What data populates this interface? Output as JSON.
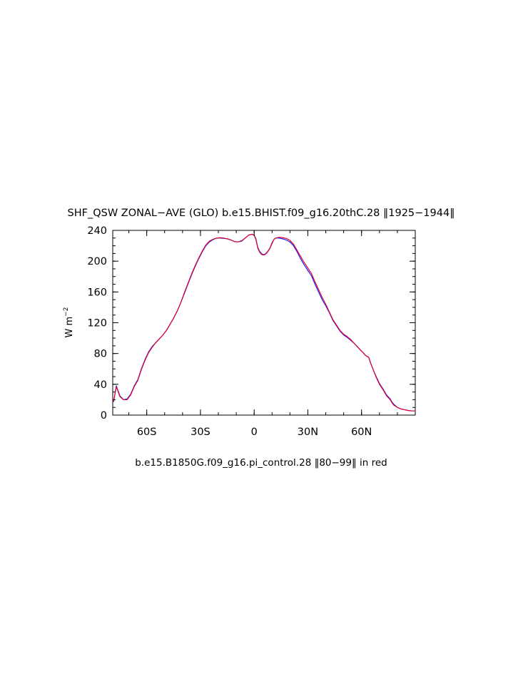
{
  "chart_data": {
    "type": "line",
    "title": "SHF_QSW ZONAL−AVE (GLO) b.e15.BHIST.f09_g16.20thC.28 ‖1925−1944‖",
    "subtitle": "b.e15.B1850G.f09_g16.pi_control.28 ‖80−99‖ in red",
    "ylabel_base": "W m",
    "ylabel_exp": "−2",
    "xlim": [
      -79,
      90
    ],
    "ylim": [
      0,
      240
    ],
    "x_ticks": [
      {
        "value": -60,
        "label": "60S"
      },
      {
        "value": -30,
        "label": "30S"
      },
      {
        "value": 0,
        "label": "0"
      },
      {
        "value": 30,
        "label": "30N"
      },
      {
        "value": 60,
        "label": "60N"
      }
    ],
    "y_ticks": [
      {
        "value": 0,
        "label": "0"
      },
      {
        "value": 40,
        "label": "40"
      },
      {
        "value": 80,
        "label": "80"
      },
      {
        "value": 120,
        "label": "120"
      },
      {
        "value": 160,
        "label": "160"
      },
      {
        "value": 200,
        "label": "200"
      },
      {
        "value": 240,
        "label": "240"
      }
    ],
    "series": [
      {
        "color": "#1f1fff",
        "points": [
          [
            -78.5,
            17
          ],
          [
            -77,
            38
          ],
          [
            -75,
            25
          ],
          [
            -73,
            20
          ],
          [
            -71,
            21
          ],
          [
            -69,
            27
          ],
          [
            -67,
            38
          ],
          [
            -65,
            46
          ],
          [
            -63,
            60
          ],
          [
            -61,
            72
          ],
          [
            -59,
            82
          ],
          [
            -57,
            89
          ],
          [
            -55,
            94
          ],
          [
            -53,
            99
          ],
          [
            -51,
            104
          ],
          [
            -49,
            110
          ],
          [
            -47,
            118
          ],
          [
            -45,
            126
          ],
          [
            -43,
            135
          ],
          [
            -41,
            146
          ],
          [
            -39,
            158
          ],
          [
            -37,
            170
          ],
          [
            -35,
            182
          ],
          [
            -33,
            193
          ],
          [
            -31,
            203
          ],
          [
            -29,
            212
          ],
          [
            -27,
            220
          ],
          [
            -25,
            225
          ],
          [
            -23,
            228
          ],
          [
            -21,
            230
          ],
          [
            -19,
            230
          ],
          [
            -17,
            229.5
          ],
          [
            -15,
            229
          ],
          [
            -13,
            227.5
          ],
          [
            -11,
            225.5
          ],
          [
            -9,
            225
          ],
          [
            -7,
            226
          ],
          [
            -5,
            230
          ],
          [
            -3,
            234
          ],
          [
            -1,
            235
          ],
          [
            0,
            234
          ],
          [
            1,
            229
          ],
          [
            2,
            218
          ],
          [
            3,
            213
          ],
          [
            4,
            210
          ],
          [
            5,
            208.5
          ],
          [
            6,
            209
          ],
          [
            7,
            211
          ],
          [
            8,
            214
          ],
          [
            9,
            218
          ],
          [
            10,
            224
          ],
          [
            11,
            228
          ],
          [
            12,
            230
          ],
          [
            14,
            230
          ],
          [
            16,
            229
          ],
          [
            18,
            227.5
          ],
          [
            20,
            225
          ],
          [
            22,
            220
          ],
          [
            24,
            212
          ],
          [
            26,
            203
          ],
          [
            28,
            195
          ],
          [
            30,
            188
          ],
          [
            32,
            181
          ],
          [
            34,
            170
          ],
          [
            36,
            160
          ],
          [
            38,
            150
          ],
          [
            40,
            142
          ],
          [
            42,
            133
          ],
          [
            44,
            123
          ],
          [
            46,
            116
          ],
          [
            48,
            109
          ],
          [
            50,
            104
          ],
          [
            52,
            101
          ],
          [
            54,
            97
          ],
          [
            56,
            93
          ],
          [
            58,
            88
          ],
          [
            60,
            83
          ],
          [
            61,
            81
          ],
          [
            62,
            78
          ],
          [
            64,
            75
          ],
          [
            65,
            68
          ],
          [
            66,
            62
          ],
          [
            67,
            56
          ],
          [
            68,
            51
          ],
          [
            69,
            46
          ],
          [
            70,
            41
          ],
          [
            72,
            34
          ],
          [
            74,
            26
          ],
          [
            76,
            21
          ],
          [
            77,
            17
          ],
          [
            78,
            14
          ],
          [
            80,
            10
          ],
          [
            82,
            8
          ],
          [
            84,
            7
          ],
          [
            86,
            6
          ],
          [
            88,
            5.5
          ],
          [
            90,
            5.5
          ]
        ]
      },
      {
        "color": "#e0002a",
        "points": [
          [
            -78.5,
            18
          ],
          [
            -77,
            37
          ],
          [
            -75,
            24
          ],
          [
            -73,
            20
          ],
          [
            -71,
            20
          ],
          [
            -69,
            26
          ],
          [
            -67,
            37
          ],
          [
            -65,
            45
          ],
          [
            -63,
            59
          ],
          [
            -61,
            71
          ],
          [
            -59,
            81
          ],
          [
            -57,
            88
          ],
          [
            -55,
            94
          ],
          [
            -53,
            99
          ],
          [
            -51,
            104
          ],
          [
            -49,
            110
          ],
          [
            -47,
            118
          ],
          [
            -45,
            126
          ],
          [
            -43,
            135
          ],
          [
            -41,
            146
          ],
          [
            -39,
            159
          ],
          [
            -37,
            171
          ],
          [
            -35,
            183
          ],
          [
            -33,
            194
          ],
          [
            -31,
            204
          ],
          [
            -29,
            213
          ],
          [
            -27,
            221
          ],
          [
            -25,
            226
          ],
          [
            -23,
            228.5
          ],
          [
            -21,
            230
          ],
          [
            -19,
            230.5
          ],
          [
            -17,
            230
          ],
          [
            -15,
            229
          ],
          [
            -13,
            227.5
          ],
          [
            -11,
            225.5
          ],
          [
            -9,
            225
          ],
          [
            -7,
            226.5
          ],
          [
            -5,
            230
          ],
          [
            -3,
            234
          ],
          [
            -1,
            235
          ],
          [
            0,
            233.5
          ],
          [
            1,
            228
          ],
          [
            2,
            217
          ],
          [
            3,
            212
          ],
          [
            4,
            209
          ],
          [
            5,
            208
          ],
          [
            6,
            208.5
          ],
          [
            7,
            210.5
          ],
          [
            8,
            213.5
          ],
          [
            9,
            217.5
          ],
          [
            10,
            223
          ],
          [
            11,
            228
          ],
          [
            12,
            230
          ],
          [
            14,
            231
          ],
          [
            16,
            230.5
          ],
          [
            18,
            229.5
          ],
          [
            20,
            227
          ],
          [
            22,
            222
          ],
          [
            24,
            214
          ],
          [
            26,
            206
          ],
          [
            28,
            198
          ],
          [
            30,
            191
          ],
          [
            32,
            184
          ],
          [
            34,
            173
          ],
          [
            36,
            163
          ],
          [
            38,
            153
          ],
          [
            40,
            144
          ],
          [
            42,
            134
          ],
          [
            44,
            124
          ],
          [
            46,
            117
          ],
          [
            48,
            110
          ],
          [
            50,
            105
          ],
          [
            52,
            102
          ],
          [
            54,
            98
          ],
          [
            56,
            93
          ],
          [
            58,
            88
          ],
          [
            60,
            83
          ],
          [
            61,
            81
          ],
          [
            62,
            78
          ],
          [
            64,
            75
          ],
          [
            65,
            68
          ],
          [
            66,
            62
          ],
          [
            67,
            56
          ],
          [
            68,
            50
          ],
          [
            69,
            45
          ],
          [
            70,
            40
          ],
          [
            72,
            33
          ],
          [
            74,
            25
          ],
          [
            76,
            20
          ],
          [
            77,
            16
          ],
          [
            78,
            13
          ],
          [
            80,
            10
          ],
          [
            82,
            8
          ],
          [
            84,
            7
          ],
          [
            86,
            6
          ],
          [
            88,
            5.5
          ],
          [
            90,
            5.5
          ]
        ]
      }
    ]
  }
}
